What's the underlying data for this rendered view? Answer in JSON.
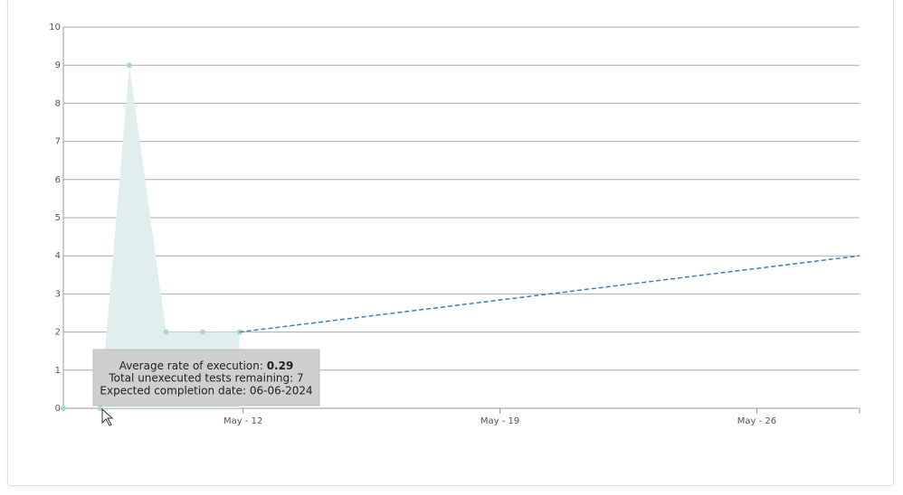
{
  "chart_data": {
    "type": "area",
    "series": [
      {
        "color": "#a9d6d4",
        "fill": "#e1eeee",
        "x": [
          7.1,
          8.1,
          8.9,
          9.9,
          10.9,
          11.9
        ],
        "values": [
          0,
          0,
          9,
          2,
          2,
          2
        ]
      },
      {
        "color": "#3d7fb8",
        "dashed": true,
        "x": [
          11.9,
          28.8
        ],
        "values": [
          2,
          4
        ]
      }
    ],
    "xlim": [
      7.1,
      28.8
    ],
    "xticks": [
      {
        "value": 12,
        "label": "May - 12"
      },
      {
        "value": 19,
        "label": "May - 19"
      },
      {
        "value": 26,
        "label": "May - 26"
      }
    ],
    "ylim": [
      0,
      10
    ],
    "yticks": [
      0,
      1,
      2,
      3,
      4,
      5,
      6,
      7,
      8,
      9,
      10
    ],
    "grid": true,
    "tooltip": {
      "rate_label": "Average rate of execution:",
      "rate_value": "0.29",
      "remaining": "Total unexecuted tests remaining: 7",
      "completion": "Expected completion date: 06-06-2024"
    }
  }
}
